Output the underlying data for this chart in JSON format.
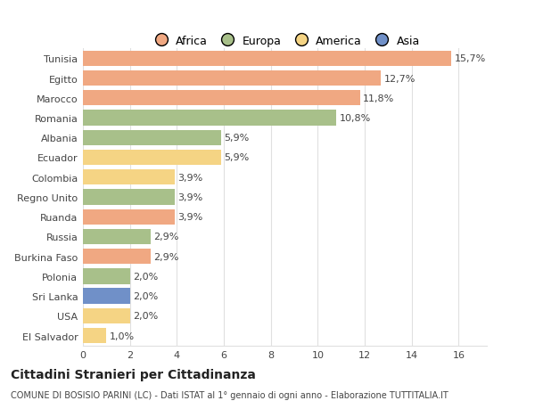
{
  "countries": [
    "El Salvador",
    "USA",
    "Sri Lanka",
    "Polonia",
    "Burkina Faso",
    "Russia",
    "Ruanda",
    "Regno Unito",
    "Colombia",
    "Ecuador",
    "Albania",
    "Romania",
    "Marocco",
    "Egitto",
    "Tunisia"
  ],
  "values": [
    1.0,
    2.0,
    2.0,
    2.0,
    2.9,
    2.9,
    3.9,
    3.9,
    3.9,
    5.9,
    5.9,
    10.8,
    11.8,
    12.7,
    15.7
  ],
  "labels": [
    "1,0%",
    "2,0%",
    "2,0%",
    "2,0%",
    "2,9%",
    "2,9%",
    "3,9%",
    "3,9%",
    "3,9%",
    "5,9%",
    "5,9%",
    "10,8%",
    "11,8%",
    "12,7%",
    "15,7%"
  ],
  "continents": [
    "America",
    "America",
    "Asia",
    "Europa",
    "Africa",
    "Europa",
    "Africa",
    "Europa",
    "America",
    "America",
    "Europa",
    "Europa",
    "Africa",
    "Africa",
    "Africa"
  ],
  "colors": {
    "Africa": "#F0A882",
    "Europa": "#A8C08A",
    "America": "#F5D484",
    "Asia": "#7090C8"
  },
  "legend_order": [
    "Africa",
    "Europa",
    "America",
    "Asia"
  ],
  "legend_colors": [
    "#F0A882",
    "#A8C08A",
    "#F5D484",
    "#7090C8"
  ],
  "title": "Cittadini Stranieri per Cittadinanza",
  "subtitle": "COMUNE DI BOSISIO PARINI (LC) - Dati ISTAT al 1° gennaio di ogni anno - Elaborazione TUTTITALIA.IT",
  "xlim": [
    0,
    17.2
  ],
  "xticks": [
    0,
    2,
    4,
    6,
    8,
    10,
    12,
    14,
    16
  ],
  "bar_height": 0.78,
  "background_color": "#ffffff",
  "grid_color": "#e0e0e0",
  "text_color": "#444444",
  "title_fontsize": 10,
  "subtitle_fontsize": 7,
  "tick_fontsize": 8,
  "label_fontsize": 8,
  "legend_fontsize": 9
}
